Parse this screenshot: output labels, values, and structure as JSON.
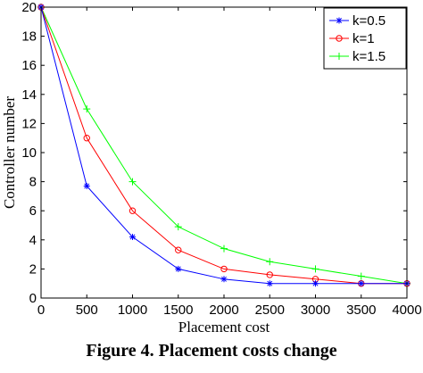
{
  "caption": "Figure 4. Placement costs change",
  "chart_data": {
    "type": "line",
    "title": "",
    "xlabel": "Placement cost",
    "ylabel": "Controller number",
    "xlim": [
      0,
      4000
    ],
    "ylim": [
      0,
      20
    ],
    "xticks": [
      0,
      500,
      1000,
      1500,
      2000,
      2500,
      3000,
      3500,
      4000
    ],
    "yticks": [
      0,
      2,
      4,
      6,
      8,
      10,
      12,
      14,
      16,
      18,
      20
    ],
    "grid": false,
    "legend_position": "top-right",
    "x": [
      0,
      500,
      1000,
      1500,
      2000,
      2500,
      3000,
      3500,
      4000
    ],
    "series": [
      {
        "name": "k=0.5",
        "color": "#0000ff",
        "marker": "star",
        "values": [
          20,
          7.7,
          4.2,
          2.0,
          1.3,
          1.0,
          1.0,
          1.0,
          1.0
        ]
      },
      {
        "name": "k=1",
        "color": "#ff0000",
        "marker": "circle",
        "values": [
          20,
          11.0,
          6.0,
          3.3,
          2.0,
          1.6,
          1.3,
          1.0,
          1.0
        ]
      },
      {
        "name": "k=1.5",
        "color": "#00ff00",
        "marker": "plus",
        "values": [
          20,
          13.0,
          8.0,
          4.9,
          3.4,
          2.5,
          2.0,
          1.5,
          1.0
        ]
      }
    ]
  }
}
